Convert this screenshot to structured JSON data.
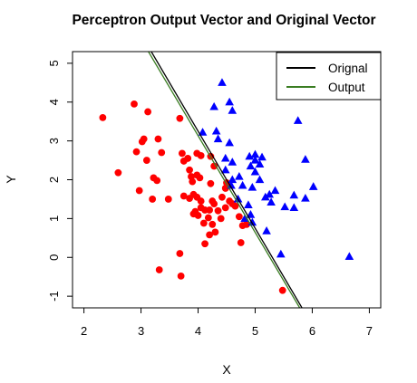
{
  "chart_data": {
    "type": "scatter",
    "title": "Perceptron Output Vector and Original Vector",
    "xlabel": "X",
    "ylabel": "Y",
    "xlim": [
      1.8,
      7.2
    ],
    "ylim": [
      -1.3,
      5.3
    ],
    "xticks": [
      "2",
      "3",
      "4",
      "5",
      "6",
      "7"
    ],
    "yticks": [
      "-1",
      "0",
      "1",
      "2",
      "3",
      "4",
      "5"
    ],
    "legend_position": "top-right",
    "series": [
      {
        "marker": "circle",
        "color": "#ff0000",
        "points": [
          [
            2.33,
            3.6
          ],
          [
            2.88,
            3.95
          ],
          [
            3.12,
            3.75
          ],
          [
            3.68,
            3.58
          ],
          [
            2.92,
            2.72
          ],
          [
            3.02,
            2.98
          ],
          [
            3.05,
            3.05
          ],
          [
            3.3,
            3.05
          ],
          [
            3.36,
            2.7
          ],
          [
            3.1,
            2.5
          ],
          [
            2.6,
            2.18
          ],
          [
            3.22,
            2.05
          ],
          [
            3.28,
            1.98
          ],
          [
            2.97,
            1.72
          ],
          [
            3.2,
            1.5
          ],
          [
            3.48,
            1.5
          ],
          [
            3.72,
            2.68
          ],
          [
            3.82,
            2.55
          ],
          [
            3.75,
            2.48
          ],
          [
            3.85,
            2.25
          ],
          [
            3.88,
            2.08
          ],
          [
            3.98,
            2.12
          ],
          [
            3.9,
            1.95
          ],
          [
            4.03,
            2.05
          ],
          [
            3.98,
            2.68
          ],
          [
            4.05,
            2.62
          ],
          [
            4.22,
            2.6
          ],
          [
            4.28,
            2.35
          ],
          [
            4.22,
            1.9
          ],
          [
            3.75,
            1.58
          ],
          [
            3.85,
            1.52
          ],
          [
            3.92,
            1.62
          ],
          [
            3.98,
            1.55
          ],
          [
            3.95,
            1.18
          ],
          [
            4.0,
            1.08
          ],
          [
            4.05,
            1.28
          ],
          [
            4.12,
            1.22
          ],
          [
            4.2,
            1.22
          ],
          [
            4.28,
            1.38
          ],
          [
            4.35,
            1.2
          ],
          [
            4.42,
            1.55
          ],
          [
            4.48,
            1.78
          ],
          [
            4.5,
            1.92
          ],
          [
            4.55,
            1.45
          ],
          [
            4.6,
            1.38
          ],
          [
            4.65,
            1.32
          ],
          [
            4.72,
            1.05
          ],
          [
            4.78,
            0.82
          ],
          [
            4.85,
            0.85
          ],
          [
            4.18,
            1.02
          ],
          [
            4.25,
            0.85
          ],
          [
            4.1,
            0.88
          ],
          [
            4.3,
            0.65
          ],
          [
            4.2,
            0.58
          ],
          [
            4.12,
            0.35
          ],
          [
            3.68,
            0.1
          ],
          [
            3.32,
            -0.32
          ],
          [
            3.7,
            -0.48
          ],
          [
            5.48,
            -0.85
          ],
          [
            4.4,
            1.0
          ],
          [
            4.05,
            1.45
          ],
          [
            4.48,
            1.28
          ],
          [
            4.75,
            0.38
          ],
          [
            4.25,
            1.45
          ],
          [
            3.92,
            1.12
          ]
        ]
      },
      {
        "marker": "triangle",
        "color": "#0000ff",
        "points": [
          [
            4.42,
            4.5
          ],
          [
            4.55,
            4.0
          ],
          [
            4.28,
            3.88
          ],
          [
            4.6,
            3.78
          ],
          [
            4.32,
            3.25
          ],
          [
            4.08,
            3.22
          ],
          [
            4.35,
            3.05
          ],
          [
            4.55,
            2.95
          ],
          [
            4.48,
            2.55
          ],
          [
            4.6,
            2.45
          ],
          [
            4.48,
            2.25
          ],
          [
            4.6,
            2.0
          ],
          [
            4.58,
            1.85
          ],
          [
            4.72,
            2.08
          ],
          [
            4.9,
            2.6
          ],
          [
            4.92,
            2.35
          ],
          [
            5.0,
            2.5
          ],
          [
            5.12,
            2.58
          ],
          [
            5.08,
            2.4
          ],
          [
            5.0,
            2.2
          ],
          [
            5.08,
            2.0
          ],
          [
            4.95,
            1.8
          ],
          [
            4.78,
            1.85
          ],
          [
            4.7,
            1.5
          ],
          [
            4.88,
            1.35
          ],
          [
            4.92,
            1.1
          ],
          [
            4.82,
            1.0
          ],
          [
            4.95,
            0.9
          ],
          [
            5.18,
            1.55
          ],
          [
            5.25,
            1.62
          ],
          [
            5.35,
            1.72
          ],
          [
            5.28,
            1.42
          ],
          [
            5.2,
            0.68
          ],
          [
            5.52,
            1.3
          ],
          [
            5.45,
            0.08
          ],
          [
            5.68,
            1.6
          ],
          [
            5.68,
            1.28
          ],
          [
            5.88,
            1.52
          ],
          [
            5.75,
            3.52
          ],
          [
            5.88,
            2.52
          ],
          [
            6.02,
            1.82
          ],
          [
            6.65,
            0.02
          ],
          [
            5.0,
            2.65
          ]
        ]
      },
      {
        "name": "Orignal",
        "type": "line",
        "color": "#000000",
        "x": [
          3.18,
          5.82
        ],
        "y": [
          5.3,
          -1.3
        ]
      },
      {
        "name": "Output",
        "type": "line",
        "color": "#3a7d22",
        "x": [
          3.13,
          5.78
        ],
        "y": [
          5.3,
          -1.3
        ]
      }
    ]
  }
}
